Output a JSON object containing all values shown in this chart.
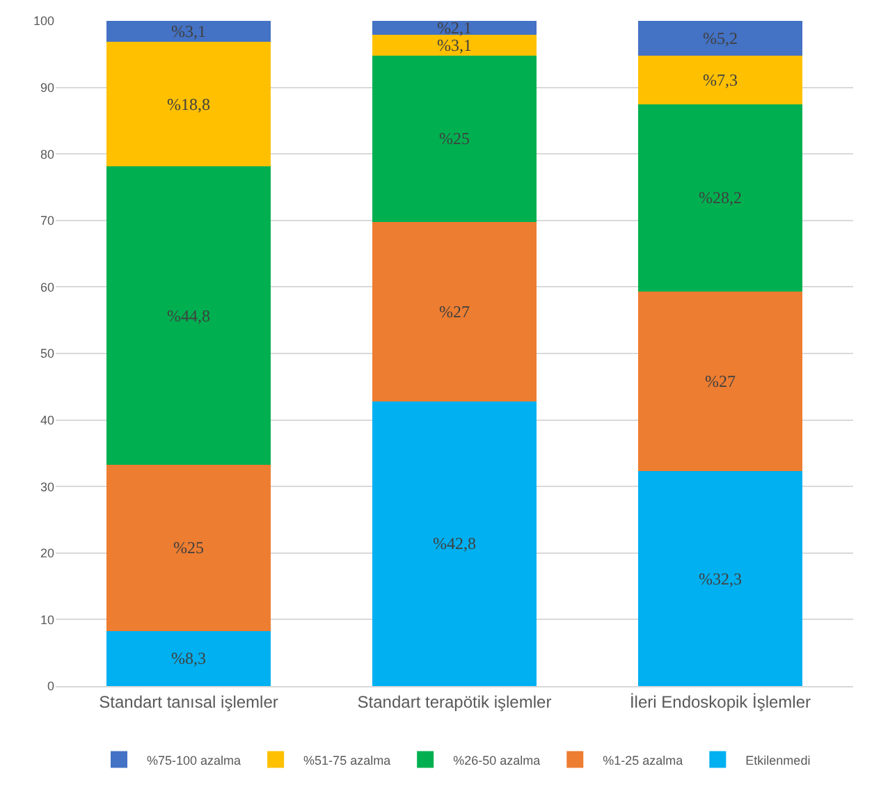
{
  "chart_data": {
    "type": "bar",
    "stacked": true,
    "categories": [
      "Standart tanısal işlemler",
      "Standart terapötik işlemler",
      "İleri Endoskopik İşlemler"
    ],
    "series": [
      {
        "name": "Etkilenmedi",
        "color": "#00b0f0",
        "values": [
          8.3,
          42.8,
          32.3
        ],
        "value_labels": [
          "%8,3",
          "%42,8",
          "%32,3"
        ]
      },
      {
        "name": "%1-25 azalma",
        "color": "#ed7d31",
        "values": [
          25,
          27,
          27
        ],
        "value_labels": [
          "%25",
          "%27",
          "%27"
        ]
      },
      {
        "name": "%26-50 azalma",
        "color": "#00b050",
        "values": [
          44.8,
          25,
          28.2
        ],
        "value_labels": [
          "%44,8",
          "%25",
          "%28,2"
        ]
      },
      {
        "name": "%51-75 azalma",
        "color": "#ffc000",
        "values": [
          18.8,
          3.1,
          7.3
        ],
        "value_labels": [
          "%18,8",
          "%3,1",
          "%7,3"
        ]
      },
      {
        "name": "%75-100 azalma",
        "color": "#4472c4",
        "values": [
          3.1,
          2.1,
          5.2
        ],
        "value_labels": [
          "%3,1",
          "%2,1",
          "%5,2"
        ]
      }
    ],
    "ylim": [
      0,
      100
    ],
    "yticks": [
      0,
      10,
      20,
      30,
      40,
      50,
      60,
      70,
      80,
      90,
      100
    ],
    "grid": "y",
    "legend": "bottom"
  }
}
